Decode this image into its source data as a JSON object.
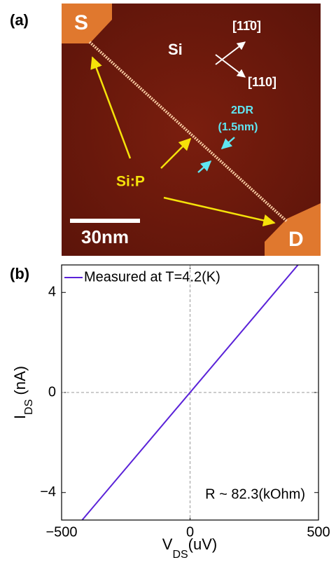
{
  "image_panel": {
    "label": "(a)",
    "source": "S",
    "drain": "D",
    "substrate": "Si",
    "direction_1": "[11̄0]",
    "direction_2": "[110]",
    "width_label": "2DR",
    "width_value": "(1.5nm)",
    "wire_label": "Si:P",
    "scale_bar": "30nm"
  },
  "chart_data": {
    "type": "line",
    "label": "(b)",
    "xlabel": {
      "main": "V",
      "sub": "DS",
      "unit": "(uV)"
    },
    "ylabel": {
      "main": "I",
      "sub": "DS",
      "unit": "(nA)"
    },
    "x": [
      -420,
      420
    ],
    "series": [
      {
        "name": "Measured at T=4.2(K)",
        "color": "#5a22d8",
        "values": [
          -5.1,
          5.1
        ]
      }
    ],
    "xlim": [
      -500,
      500
    ],
    "ylim": [
      -5.1,
      5.1
    ],
    "xticks": [
      {
        "value": -500,
        "label": "−500"
      },
      0,
      500
    ],
    "yticks": [
      {
        "value": -4,
        "label": "−4"
      },
      0,
      4
    ],
    "zero_lines": true,
    "annotation": "R ~ 82.3(kOhm)"
  }
}
